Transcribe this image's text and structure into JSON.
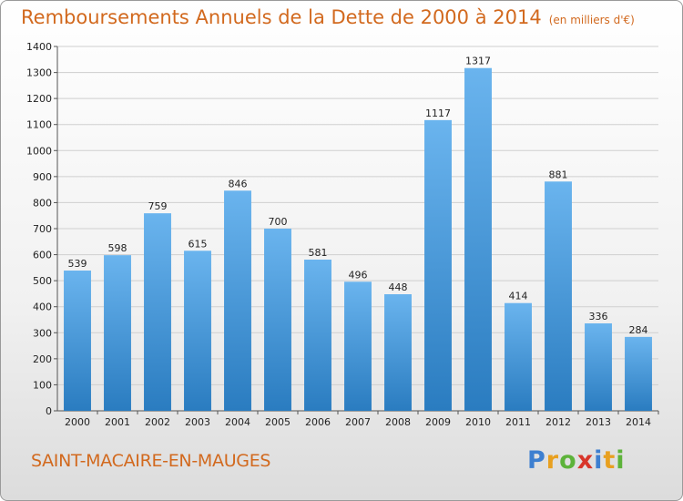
{
  "header": {
    "title": "Remboursements Annuels de la Dette de 2000 à 2014",
    "unit": "(en milliers d'€)"
  },
  "footer": {
    "commune": "SAINT-MACAIRE-EN-MAUGES",
    "logo": [
      "P",
      "r",
      "o",
      "x",
      "i",
      "t",
      "i"
    ],
    "logo_colors": [
      "#3d7fd0",
      "#e8a020",
      "#5db33a",
      "#d8352a",
      "#3d7fd0",
      "#e8a020",
      "#5db33a"
    ]
  },
  "chart_data": {
    "type": "bar",
    "title": "Remboursements Annuels de la Dette de 2000 à 2014",
    "xlabel": "",
    "ylabel": "",
    "categories": [
      "2000",
      "2001",
      "2002",
      "2003",
      "2004",
      "2005",
      "2006",
      "2007",
      "2008",
      "2009",
      "2010",
      "2011",
      "2012",
      "2013",
      "2014"
    ],
    "values": [
      539,
      598,
      759,
      615,
      846,
      700,
      581,
      496,
      448,
      1117,
      1317,
      414,
      881,
      336,
      284
    ],
    "ylim": [
      0,
      1400
    ],
    "yticks": [
      0,
      100,
      200,
      300,
      400,
      500,
      600,
      700,
      800,
      900,
      1000,
      1100,
      1200,
      1300,
      1400
    ],
    "grid": true,
    "bar_color_top": "#6ab4ee",
    "bar_color_bottom": "#2a7cc0"
  }
}
